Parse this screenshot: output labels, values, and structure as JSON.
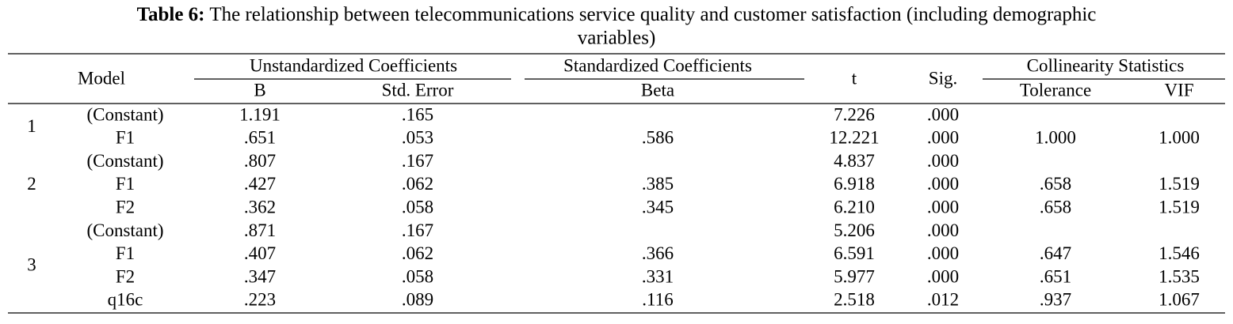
{
  "title": {
    "label": "Table 6:",
    "lines": [
      "The relationship between telecommunications service quality and customer satisfaction (including demographic",
      "variables)"
    ]
  },
  "table": {
    "header": {
      "model": "Model",
      "unstandardized": "Unstandardized Coefficients",
      "standardized": "Standardized Coefficients",
      "t": "t",
      "sig": "Sig.",
      "collinearity": "Collinearity Statistics",
      "b": "B",
      "std_error": "Std. Error",
      "beta": "Beta",
      "tolerance": "Tolerance",
      "vif": "VIF"
    },
    "models": [
      {
        "model": "1",
        "rows": [
          [
            "(Constant)",
            "1.191",
            ".165",
            null,
            "7.226",
            ".000",
            null,
            null
          ],
          [
            "F1",
            ".651",
            ".053",
            ".586",
            "12.221",
            ".000",
            "1.000",
            "1.000"
          ]
        ]
      },
      {
        "model": "2",
        "rows": [
          [
            "(Constant)",
            ".807",
            ".167",
            null,
            "4.837",
            ".000",
            null,
            null
          ],
          [
            "F1",
            ".427",
            ".062",
            ".385",
            "6.918",
            ".000",
            ".658",
            "1.519"
          ],
          [
            "F2",
            ".362",
            ".058",
            ".345",
            "6.210",
            ".000",
            ".658",
            "1.519"
          ]
        ]
      },
      {
        "model": "3",
        "rows": [
          [
            "(Constant)",
            ".871",
            ".167",
            null,
            "5.206",
            ".000",
            null,
            null
          ],
          [
            "F1",
            ".407",
            ".062",
            ".366",
            "6.591",
            ".000",
            ".647",
            "1.546"
          ],
          [
            "F2",
            ".347",
            ".058",
            ".331",
            "5.977",
            ".000",
            ".651",
            "1.535"
          ],
          [
            "q16c",
            ".223",
            ".089",
            ".116",
            "2.518",
            ".012",
            ".937",
            "1.067"
          ]
        ]
      }
    ]
  }
}
